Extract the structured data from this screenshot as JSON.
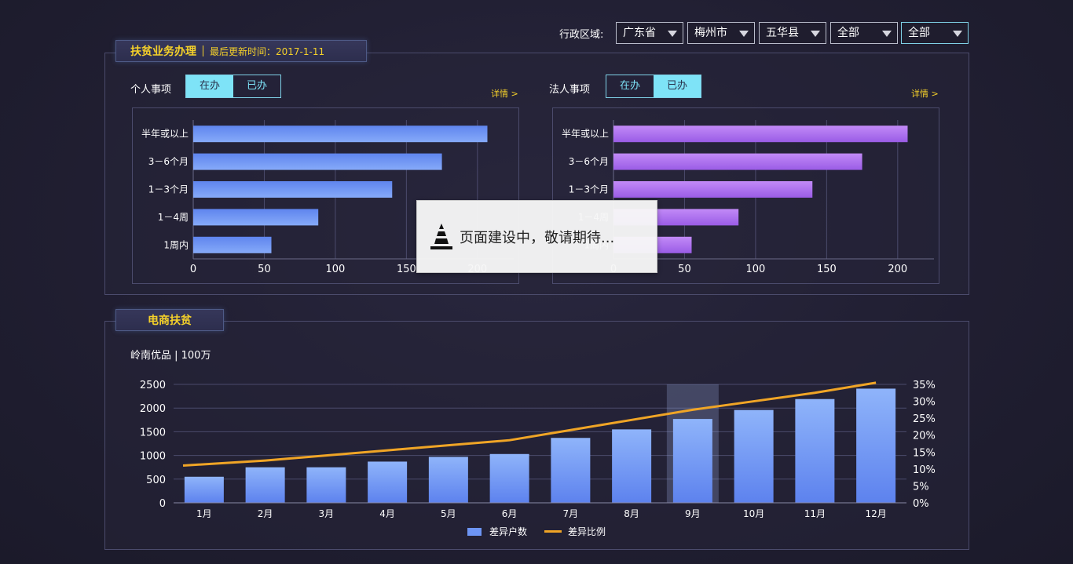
{
  "filters": {
    "label": "行政区域:",
    "selects": [
      {
        "value": "广东省"
      },
      {
        "value": "梅州市"
      },
      {
        "value": "五华县"
      },
      {
        "value": "全部"
      },
      {
        "value": "全部"
      }
    ]
  },
  "poverty_panel": {
    "title": "扶贫业务办理",
    "updated": "最后更新时间：2017-1-11",
    "personal": {
      "label": "个人事项",
      "tab_active": "在办",
      "tab_inactive": "已办",
      "detail": "详情 >"
    },
    "corporate": {
      "label": "法人事项",
      "tab_active": "在办",
      "tab_inactive": "已办",
      "detail": "详情 >"
    }
  },
  "overlay": {
    "icon": "traffic-cone-icon",
    "text": "页面建设中，敬请期待..."
  },
  "ecommerce_panel": {
    "title": "电商扶贫",
    "subtitle": "岭南优品 | 100万"
  },
  "chart_data": [
    {
      "type": "bar",
      "orientation": "horizontal",
      "categories": [
        "半年或以上",
        "3－6个月",
        "1－3个月",
        "1－4周",
        "1周内"
      ],
      "values": [
        207,
        175,
        140,
        88,
        55
      ],
      "xlim": [
        0,
        220
      ],
      "xticks": [
        "0",
        "50",
        "100",
        "150",
        "200"
      ],
      "color": "#6d95f4",
      "grid": true
    },
    {
      "type": "bar",
      "orientation": "horizontal",
      "categories": [
        "半年或以上",
        "3－6个月",
        "1－3个月",
        "1－4周",
        "1周内"
      ],
      "values": [
        207,
        175,
        140,
        88,
        55
      ],
      "xlim": [
        0,
        220
      ],
      "xticks": [
        "0",
        "50",
        "100",
        "150",
        "200"
      ],
      "color": "#a970ee",
      "grid": true
    },
    {
      "type": "bar",
      "categories": [
        "1月",
        "2月",
        "3月",
        "4月",
        "5月",
        "6月",
        "7月",
        "8月",
        "9月",
        "10月",
        "11月",
        "12月"
      ],
      "series": [
        {
          "name": "差异户数",
          "type": "bar",
          "axis": "left",
          "values": [
            550,
            750,
            750,
            870,
            970,
            1030,
            1370,
            1550,
            1770,
            1960,
            2190,
            2410
          ],
          "color": "#6d95f4"
        },
        {
          "name": "差异比例",
          "type": "line",
          "axis": "right",
          "values": [
            11,
            12.5,
            14,
            15.5,
            17,
            18.5,
            21.5,
            24.5,
            27.5,
            30,
            32.5,
            35.5
          ],
          "color": "#f0a526"
        }
      ],
      "ylim_left": [
        0,
        2500
      ],
      "yticks_left": [
        "0",
        "500",
        "1000",
        "1500",
        "2000",
        "2500"
      ],
      "ylim_right": [
        0,
        35
      ],
      "yticks_right": [
        "0%",
        "5%",
        "10%",
        "15%",
        "20%",
        "25%",
        "30%",
        "35%"
      ],
      "highlight_category": "9月",
      "grid": true,
      "legend": "bottom-center"
    }
  ]
}
